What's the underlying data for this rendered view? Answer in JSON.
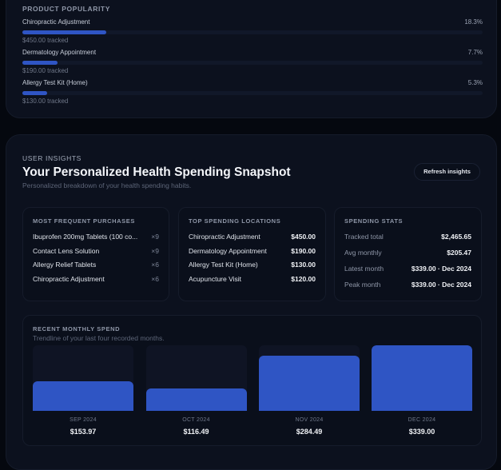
{
  "popularity": {
    "title": "PRODUCT POPULARITY",
    "items": [
      {
        "name": "Chiropractic Adjustment",
        "percent": 18.3,
        "percent_label": "18.3%",
        "tracked": "$450.00 tracked"
      },
      {
        "name": "Dermatology Appointment",
        "percent": 7.7,
        "percent_label": "7.7%",
        "tracked": "$190.00 tracked"
      },
      {
        "name": "Allergy Test Kit (Home)",
        "percent": 5.3,
        "percent_label": "5.3%",
        "tracked": "$130.00 tracked"
      }
    ]
  },
  "insights": {
    "eyebrow": "USER INSIGHTS",
    "title": "Your Personalized Health Spending Snapshot",
    "subtitle": "Personalized breakdown of your health spending habits.",
    "refresh_label": "Refresh insights",
    "frequent": {
      "title": "MOST FREQUENT PURCHASES",
      "items": [
        {
          "name": "Ibuprofen 200mg Tablets (100 co...",
          "count": "×9"
        },
        {
          "name": "Contact Lens Solution",
          "count": "×9"
        },
        {
          "name": "Allergy Relief Tablets",
          "count": "×6"
        },
        {
          "name": "Chiropractic Adjustment",
          "count": "×6"
        }
      ]
    },
    "locations": {
      "title": "TOP SPENDING LOCATIONS",
      "items": [
        {
          "name": "Chiropractic Adjustment",
          "amount": "$450.00"
        },
        {
          "name": "Dermatology Appointment",
          "amount": "$190.00"
        },
        {
          "name": "Allergy Test Kit (Home)",
          "amount": "$130.00"
        },
        {
          "name": "Acupuncture Visit",
          "amount": "$120.00"
        }
      ]
    },
    "stats": {
      "title": "SPENDING STATS",
      "items": [
        {
          "label": "Tracked total",
          "value": "$2,465.65"
        },
        {
          "label": "Avg monthly",
          "value": "$205.47"
        },
        {
          "label": "Latest month",
          "value": "$339.00 · Dec 2024"
        },
        {
          "label": "Peak month",
          "value": "$339.00 · Dec 2024"
        }
      ]
    },
    "monthly": {
      "title": "RECENT MONTHLY SPEND",
      "subtitle": "Trendline of your last four recorded months.",
      "bar_color": "#2f55c4",
      "months": [
        {
          "label": "SEP 2024",
          "value": 153.97,
          "value_label": "$153.97"
        },
        {
          "label": "OCT 2024",
          "value": 116.49,
          "value_label": "$116.49"
        },
        {
          "label": "NOV 2024",
          "value": 284.49,
          "value_label": "$284.49"
        },
        {
          "label": "DEC 2024",
          "value": 339.0,
          "value_label": "$339.00"
        }
      ]
    }
  }
}
